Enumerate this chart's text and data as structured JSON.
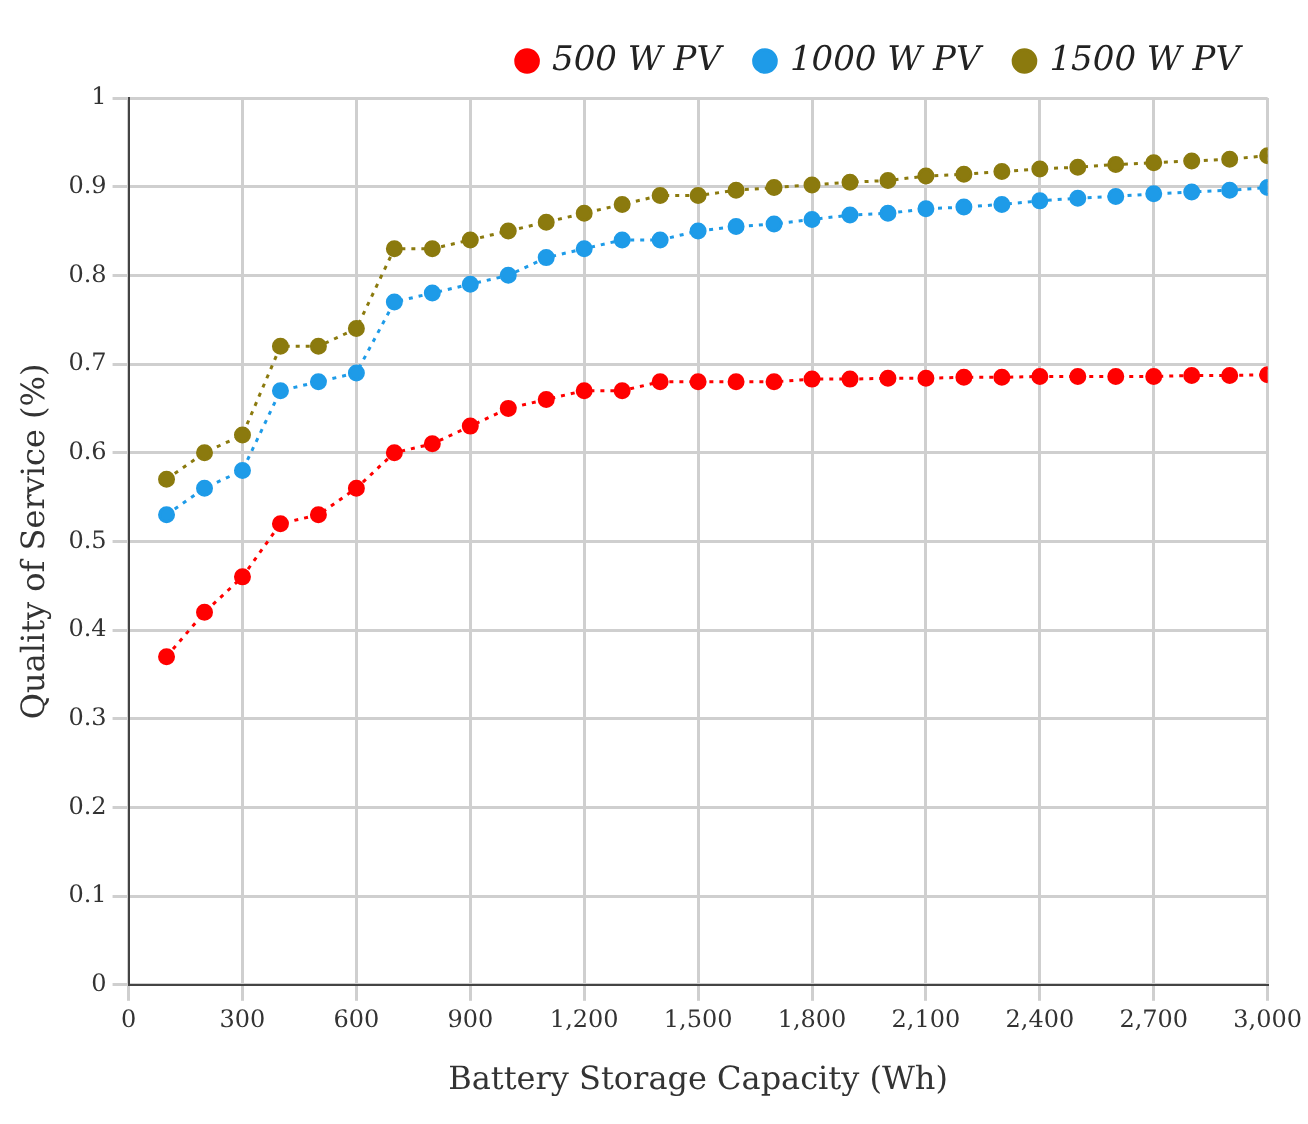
{
  "chart_data": {
    "type": "line",
    "xlabel": "Battery Storage Capacity (Wh)",
    "ylabel": "Quality of Service (%)",
    "x": [
      100,
      200,
      300,
      400,
      500,
      600,
      700,
      800,
      900,
      1000,
      1100,
      1200,
      1300,
      1400,
      1500,
      1600,
      1700,
      1800,
      1900,
      2000,
      2100,
      2200,
      2300,
      2400,
      2500,
      2600,
      2700,
      2800,
      2900,
      3000
    ],
    "series": [
      {
        "name": "500 W PV",
        "color": "#ff0000",
        "values": [
          0.37,
          0.42,
          0.46,
          0.52,
          0.53,
          0.56,
          0.6,
          0.61,
          0.63,
          0.65,
          0.66,
          0.67,
          0.67,
          0.68,
          0.68,
          0.68,
          0.68,
          0.683,
          0.683,
          0.684,
          0.684,
          0.685,
          0.685,
          0.686,
          0.686,
          0.686,
          0.686,
          0.687,
          0.687,
          0.688
        ]
      },
      {
        "name": "1000 W PV",
        "color": "#1e9be8",
        "values": [
          0.53,
          0.56,
          0.58,
          0.67,
          0.68,
          0.69,
          0.77,
          0.78,
          0.79,
          0.8,
          0.82,
          0.83,
          0.84,
          0.84,
          0.85,
          0.855,
          0.858,
          0.863,
          0.868,
          0.87,
          0.875,
          0.877,
          0.88,
          0.884,
          0.887,
          0.889,
          0.892,
          0.894,
          0.896,
          0.899
        ]
      },
      {
        "name": "1500 W PV",
        "color": "#8b7a0e",
        "values": [
          0.57,
          0.6,
          0.62,
          0.72,
          0.72,
          0.74,
          0.83,
          0.83,
          0.84,
          0.85,
          0.86,
          0.87,
          0.88,
          0.89,
          0.89,
          0.896,
          0.899,
          0.902,
          0.905,
          0.907,
          0.912,
          0.914,
          0.917,
          0.92,
          0.922,
          0.925,
          0.927,
          0.929,
          0.931,
          0.935
        ]
      }
    ],
    "xlim": [
      0,
      3000
    ],
    "xticks": [
      0,
      {
        "value": 300,
        "label": "300"
      },
      {
        "value": 600,
        "label": "600"
      },
      {
        "value": 900,
        "label": "900"
      },
      {
        "value": 1200,
        "label": "1,200"
      },
      {
        "value": 1500,
        "label": "1,500"
      },
      {
        "value": 1800,
        "label": "1,800"
      },
      {
        "value": 2100,
        "label": "2,100"
      },
      {
        "value": 2400,
        "label": "2,400"
      },
      {
        "value": 2700,
        "label": "2,700"
      },
      {
        "value": 3000,
        "label": "3,000"
      }
    ],
    "ylim": [
      0,
      1
    ],
    "yticks": [
      0,
      0.1,
      0.2,
      0.3,
      0.4,
      0.5,
      0.6,
      0.7,
      0.8,
      0.9,
      1
    ],
    "grid": true,
    "legend": "top right",
    "marker": "circle",
    "line_style": "dotted"
  }
}
